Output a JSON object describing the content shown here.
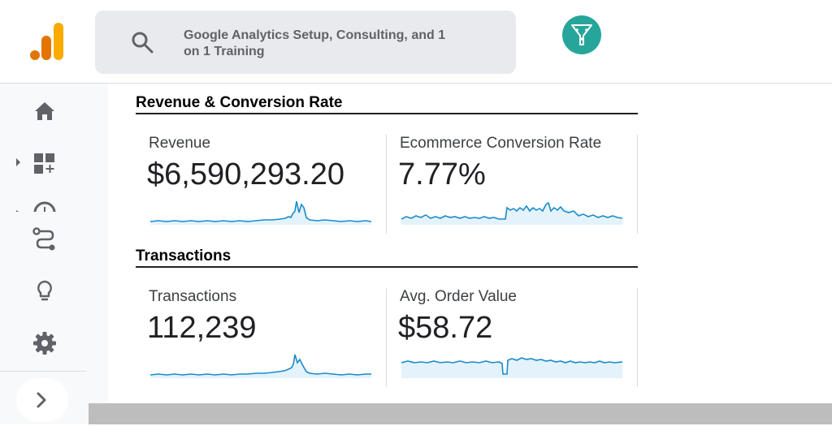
{
  "search": {
    "text": "Google Analytics Setup, Consulting, and 1 on 1 Training"
  },
  "colors": {
    "accent": "#1a73e8",
    "spark": "#1a8bc9",
    "avatar": "#26a69a",
    "logo_orange": "#f9ab00",
    "logo_dark": "#e37400"
  },
  "icons": {
    "logo": "analytics-logo-icon",
    "search": "search-icon",
    "avatar": "funnel-icon",
    "home": "home-icon",
    "reports": "customization-icon",
    "realtime": "clock-icon",
    "flow": "flow-icon",
    "insights": "lightbulb-icon",
    "admin": "gear-icon",
    "collapse": "chevron-right-icon"
  },
  "sections": [
    {
      "title": "Revenue & Conversion Rate",
      "cards": [
        {
          "label": "Revenue",
          "value": "$6,590,293.20"
        },
        {
          "label": "Ecommerce Conversion Rate",
          "value": "7.77%"
        }
      ]
    },
    {
      "title": "Transactions",
      "cards": [
        {
          "label": "Transactions",
          "value": "112,239"
        },
        {
          "label": "Avg. Order Value",
          "value": "$58.72"
        }
      ]
    }
  ]
}
